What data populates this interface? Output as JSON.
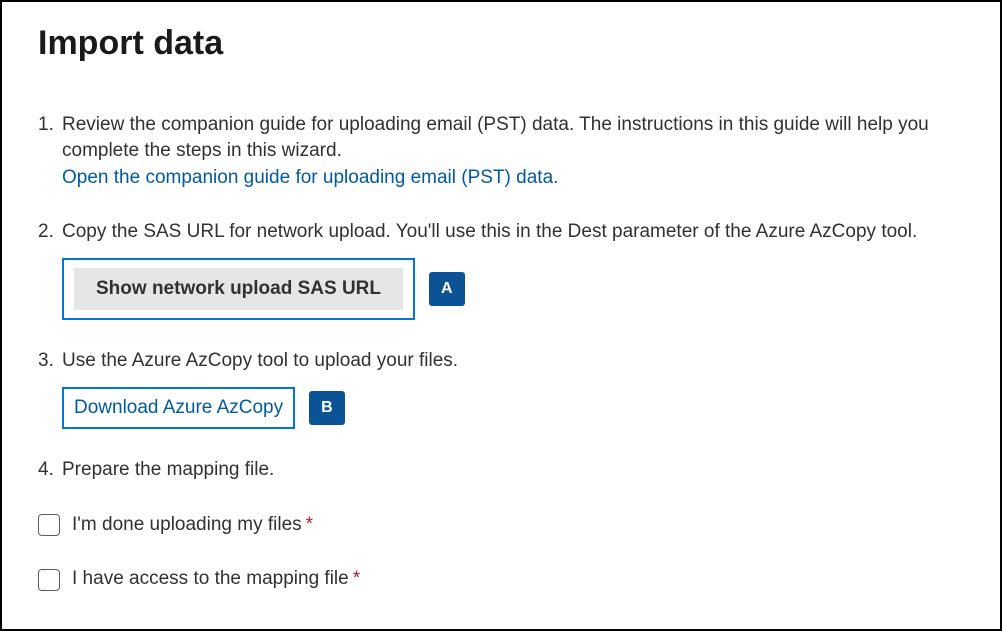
{
  "title": "Import data",
  "steps": {
    "step1": {
      "text": "Review the companion guide for uploading email (PST) data. The instructions in this guide will help you complete the steps in this wizard.",
      "link": "Open the companion guide for uploading email (PST) data."
    },
    "step2": {
      "text": "Copy the SAS URL for network upload. You'll use this in the Dest parameter of the Azure AzCopy tool.",
      "button": "Show network upload SAS URL",
      "callout": "A"
    },
    "step3": {
      "text": "Use the Azure AzCopy tool to upload your files.",
      "link": "Download Azure AzCopy",
      "callout": "B"
    },
    "step4": {
      "text": "Prepare the mapping file."
    }
  },
  "checkboxes": {
    "done_uploading": "I'm done uploading my files",
    "have_mapping": "I have access to the mapping file",
    "required_marker": "*"
  },
  "colors": {
    "link": "#005a9e",
    "highlight_border": "#0078d4",
    "callout_bg": "#0b5394",
    "button_bg": "#e6e6e6",
    "text": "#323130",
    "required": "#a4262c"
  }
}
